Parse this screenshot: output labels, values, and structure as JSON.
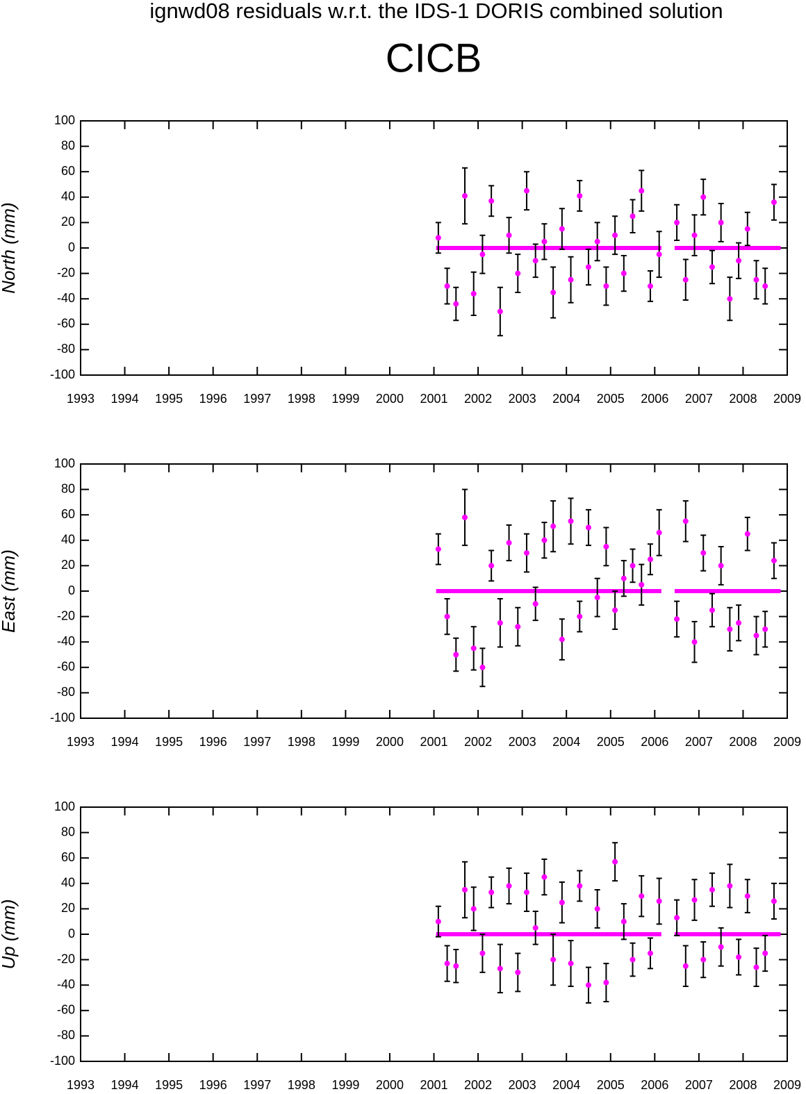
{
  "chart_data": [
    {
      "type": "scatter",
      "title": "ignwd08 residuals w.r.t. the IDS-1 DORIS combined solution",
      "subtitle": "CICB",
      "ylabel": "North (mm)",
      "color": "#ff00ff",
      "x": [
        2001.1,
        2001.3,
        2001.5,
        2001.7,
        2001.9,
        2002.1,
        2002.3,
        2002.5,
        2002.7,
        2002.9,
        2003.1,
        2003.3,
        2003.5,
        2003.7,
        2003.9,
        2004.1,
        2004.3,
        2004.5,
        2004.7,
        2004.9,
        2005.1,
        2005.3,
        2005.5,
        2005.7,
        2005.9,
        2006.1,
        2006.5,
        2006.7,
        2006.9,
        2007.1,
        2007.3,
        2007.5,
        2007.7,
        2007.9,
        2008.1,
        2008.3,
        2008.5,
        2008.7
      ],
      "values": [
        8,
        -30,
        -44,
        41,
        -36,
        -5,
        37,
        -50,
        10,
        -20,
        45,
        -10,
        5,
        -35,
        15,
        -25,
        41,
        -15,
        5,
        -30,
        10,
        -20,
        25,
        45,
        -30,
        -5,
        20,
        -25,
        10,
        40,
        -15,
        20,
        -40,
        -10,
        15,
        -25,
        -30,
        36
      ],
      "errors": [
        12,
        14,
        13,
        22,
        17,
        15,
        12,
        19,
        14,
        15,
        15,
        13,
        14,
        20,
        16,
        18,
        12,
        14,
        15,
        15,
        15,
        14,
        13,
        16,
        12,
        18,
        14,
        16,
        16,
        14,
        13,
        15,
        17,
        14,
        13,
        15,
        14,
        14
      ],
      "zero_line": {
        "x": [
          2001.05,
          2006.15,
          2006.3,
          2006.45,
          2008.85
        ],
        "values": [
          0,
          0,
          null,
          0,
          0
        ]
      },
      "xlim": [
        1993,
        2009
      ],
      "ylim": [
        -100,
        100
      ],
      "xticks": [
        1993,
        1994,
        1995,
        1996,
        1997,
        1998,
        1999,
        2000,
        2001,
        2002,
        2003,
        2004,
        2005,
        2006,
        2007,
        2008,
        2009
      ],
      "yticks": [
        -100,
        -80,
        -60,
        -40,
        -20,
        0,
        20,
        40,
        60,
        80,
        100
      ]
    },
    {
      "type": "scatter",
      "ylabel": "East (mm)",
      "color": "#ff00ff",
      "x": [
        2001.1,
        2001.3,
        2001.5,
        2001.7,
        2001.9,
        2002.1,
        2002.3,
        2002.5,
        2002.7,
        2002.9,
        2003.1,
        2003.3,
        2003.5,
        2003.7,
        2003.9,
        2004.1,
        2004.3,
        2004.5,
        2004.7,
        2004.9,
        2005.1,
        2005.3,
        2005.5,
        2005.7,
        2005.9,
        2006.1,
        2006.5,
        2006.7,
        2006.9,
        2007.1,
        2007.3,
        2007.5,
        2007.7,
        2007.9,
        2008.1,
        2008.3,
        2008.5,
        2008.7
      ],
      "values": [
        33,
        -20,
        -50,
        58,
        -45,
        -60,
        20,
        -25,
        38,
        -28,
        30,
        -10,
        40,
        51,
        -38,
        55,
        -20,
        50,
        -5,
        35,
        -15,
        10,
        20,
        5,
        25,
        46,
        -22,
        55,
        -40,
        30,
        -15,
        20,
        -30,
        -25,
        45,
        -35,
        -30,
        24
      ],
      "errors": [
        12,
        14,
        13,
        22,
        17,
        15,
        12,
        19,
        14,
        15,
        15,
        13,
        14,
        20,
        16,
        18,
        12,
        14,
        15,
        15,
        15,
        14,
        13,
        16,
        12,
        18,
        14,
        16,
        16,
        14,
        13,
        15,
        17,
        14,
        13,
        15,
        14,
        14
      ],
      "zero_line": {
        "x": [
          2001.05,
          2006.15,
          2006.3,
          2006.45,
          2008.85
        ],
        "values": [
          0,
          0,
          null,
          0,
          0
        ]
      },
      "xlim": [
        1993,
        2009
      ],
      "ylim": [
        -100,
        100
      ],
      "xticks": [
        1993,
        1994,
        1995,
        1996,
        1997,
        1998,
        1999,
        2000,
        2001,
        2002,
        2003,
        2004,
        2005,
        2006,
        2007,
        2008,
        2009
      ],
      "yticks": [
        -100,
        -80,
        -60,
        -40,
        -20,
        0,
        20,
        40,
        60,
        80,
        100
      ]
    },
    {
      "type": "scatter",
      "ylabel": "Up (mm)",
      "color": "#ff00ff",
      "x": [
        2001.1,
        2001.3,
        2001.5,
        2001.7,
        2001.9,
        2002.1,
        2002.3,
        2002.5,
        2002.7,
        2002.9,
        2003.1,
        2003.3,
        2003.5,
        2003.7,
        2003.9,
        2004.1,
        2004.3,
        2004.5,
        2004.7,
        2004.9,
        2005.1,
        2005.3,
        2005.5,
        2005.7,
        2005.9,
        2006.1,
        2006.5,
        2006.7,
        2006.9,
        2007.1,
        2007.3,
        2007.5,
        2007.7,
        2007.9,
        2008.1,
        2008.3,
        2008.5,
        2008.7
      ],
      "values": [
        10,
        -23,
        -25,
        35,
        20,
        -15,
        33,
        -27,
        38,
        -30,
        33,
        5,
        45,
        -20,
        25,
        -23,
        38,
        -40,
        20,
        -38,
        57,
        10,
        -20,
        30,
        -15,
        26,
        13,
        -25,
        27,
        -20,
        35,
        -10,
        38,
        -18,
        30,
        -26,
        -15,
        26
      ],
      "errors": [
        12,
        14,
        13,
        22,
        17,
        15,
        12,
        19,
        14,
        15,
        15,
        13,
        14,
        20,
        16,
        18,
        12,
        14,
        15,
        15,
        15,
        14,
        13,
        16,
        12,
        18,
        14,
        16,
        16,
        14,
        13,
        15,
        17,
        14,
        13,
        15,
        14,
        14
      ],
      "zero_line": {
        "x": [
          2001.05,
          2006.15,
          2006.3,
          2006.45,
          2008.85
        ],
        "values": [
          0,
          0,
          null,
          0,
          0
        ]
      },
      "xlim": [
        1993,
        2009
      ],
      "ylim": [
        -100,
        100
      ],
      "xticks": [
        1993,
        1994,
        1995,
        1996,
        1997,
        1998,
        1999,
        2000,
        2001,
        2002,
        2003,
        2004,
        2005,
        2006,
        2007,
        2008,
        2009
      ],
      "yticks": [
        -100,
        -80,
        -60,
        -40,
        -20,
        0,
        20,
        40,
        60,
        80,
        100
      ]
    }
  ]
}
